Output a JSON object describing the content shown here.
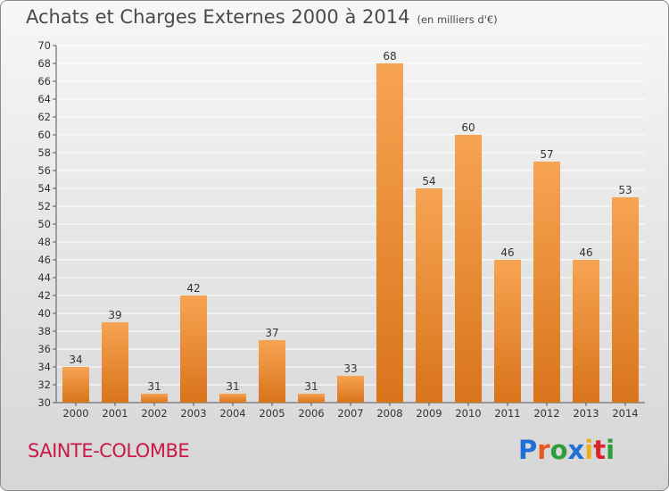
{
  "title": "Achats et Charges Externes 2000 à 2014",
  "unit": "(en milliers d'€)",
  "commune": "SAINTE-COLOMBE",
  "logo": {
    "letters": [
      "P",
      "r",
      "o",
      "x",
      "i",
      "t",
      "i"
    ],
    "colors": [
      "#1f6fd6",
      "#e65a1e",
      "#2f9e3a",
      "#1f6fd6",
      "#e8b020",
      "#d9262a",
      "#2f9e3a"
    ]
  },
  "colors": {
    "bar_light": "#f7a452",
    "bar_dark": "#d9741c",
    "grid": "#ffffff"
  },
  "chart_data": {
    "type": "bar",
    "categories": [
      "2000",
      "2001",
      "2002",
      "2003",
      "2004",
      "2005",
      "2006",
      "2007",
      "2008",
      "2009",
      "2010",
      "2011",
      "2012",
      "2013",
      "2014"
    ],
    "values": [
      34,
      39,
      31,
      42,
      31,
      37,
      31,
      33,
      68,
      54,
      60,
      46,
      57,
      46,
      53
    ],
    "title": "Achats et Charges Externes 2000 à 2014",
    "xlabel": "",
    "ylabel": "",
    "ylim": [
      30,
      70
    ],
    "ytick_step": 2,
    "grid": true,
    "data_labels": true
  }
}
